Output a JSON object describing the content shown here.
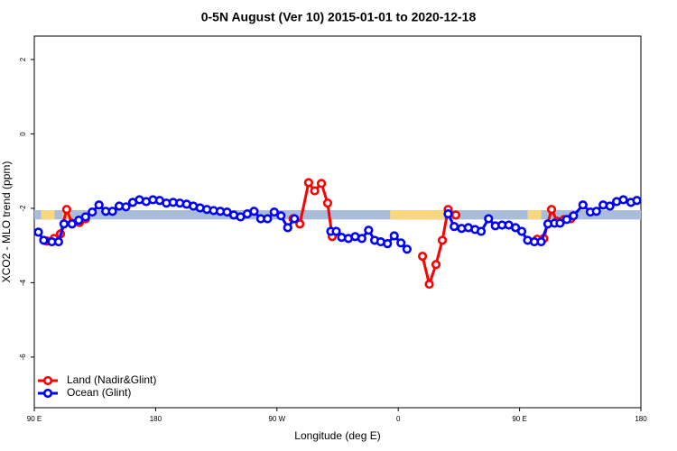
{
  "chart_data": {
    "type": "line",
    "title": "0-5N August (Ver 10)   2015-01-01 to 2020-12-18",
    "xlabel": "Longitude (deg E)",
    "ylabel": "XCO2 - MLO trend (ppm)",
    "xlim": [
      90,
      540
    ],
    "ylim": [
      -7.36,
      2.63
    ],
    "xticks": [
      {
        "value": 90,
        "label": "90 E"
      },
      {
        "value": 180,
        "label": "180"
      },
      {
        "value": 270,
        "label": "90 W"
      },
      {
        "value": 360,
        "label": "0"
      },
      {
        "value": 450,
        "label": "90 E"
      },
      {
        "value": 540,
        "label": "180"
      }
    ],
    "yticks": [
      2,
      0,
      -2,
      -4,
      -6
    ],
    "legend": "bottom-left",
    "band": {
      "ylim": [
        -2.3,
        -2.05
      ],
      "color": "#a9bcd9",
      "land_color": "#f9d77e",
      "land_segments": [
        [
          95,
          105
        ],
        [
          111,
          117
        ],
        [
          354,
          394
        ],
        [
          456,
          466
        ]
      ]
    },
    "series": [
      {
        "name": "Land (Nadir&Glint)",
        "color": "#ff0000",
        "x": [
          99.4,
          104.7,
          109.4,
          114,
          118,
          123.5,
          128,
          200,
          282,
          287,
          293.5,
          298,
          303,
          307.6,
          311,
          330,
          378,
          383,
          388,
          392.7,
          397,
          402.7,
          430,
          463,
          468,
          473.7,
          478,
          483,
          488
        ],
        "values": [
          -2.88,
          -2.81,
          -2.69,
          -2.03,
          -2.4,
          -2.38,
          -2.28,
          null,
          -2.28,
          -2.42,
          -1.31,
          -1.53,
          -1.33,
          -1.86,
          -2.76,
          null,
          -3.29,
          -4.04,
          -3.51,
          -2.86,
          -2.03,
          -2.18,
          null,
          -2.83,
          -2.81,
          -2.03,
          -2.35,
          -2.3,
          -2.28
        ]
      },
      {
        "name": "Ocean (Glint)",
        "color": "#0000ff",
        "x": [
          93,
          97,
          103,
          108,
          112,
          118,
          123,
          128,
          133,
          138,
          143,
          148,
          153,
          158,
          163,
          168,
          173,
          178,
          183,
          188,
          193,
          198,
          203,
          208,
          213,
          218,
          223,
          228,
          233,
          238,
          243,
          248,
          253,
          258,
          263,
          268,
          273,
          278,
          283,
          300,
          310,
          314,
          318,
          323,
          328,
          333,
          338,
          342.5,
          347,
          352,
          357,
          362,
          366.5,
          380,
          397,
          401.5,
          407,
          412,
          417,
          421.5,
          427,
          432,
          437,
          442,
          447,
          451.6,
          456,
          461,
          466,
          471,
          476,
          480,
          485,
          490,
          497,
          502.5,
          507,
          512,
          517,
          522,
          527,
          532.6,
          537
        ],
        "values": [
          -2.64,
          -2.86,
          -2.9,
          -2.9,
          -2.42,
          -2.42,
          -2.32,
          -2.23,
          -2.1,
          -1.91,
          -2.08,
          -2.08,
          -1.94,
          -1.96,
          -1.84,
          -1.77,
          -1.82,
          -1.77,
          -1.79,
          -1.86,
          -1.84,
          -1.86,
          -1.89,
          -1.94,
          -1.99,
          -2.03,
          -2.06,
          -2.08,
          -2.1,
          -2.18,
          -2.23,
          -2.15,
          -2.08,
          -2.28,
          -2.28,
          -2.1,
          -2.2,
          -2.52,
          -2.28,
          null,
          -2.62,
          -2.62,
          -2.78,
          -2.81,
          -2.76,
          -2.81,
          -2.59,
          -2.86,
          -2.9,
          -2.95,
          -2.74,
          -2.93,
          -3.1,
          null,
          -2.15,
          -2.49,
          -2.54,
          -2.52,
          -2.57,
          -2.62,
          -2.28,
          -2.47,
          -2.45,
          -2.45,
          -2.52,
          -2.62,
          -2.86,
          -2.9,
          -2.9,
          -2.42,
          -2.4,
          -2.4,
          -2.3,
          -2.2,
          -1.91,
          -2.1,
          -2.08,
          -1.91,
          -1.94,
          -1.82,
          -1.77,
          -1.84,
          -1.79
        ]
      }
    ]
  }
}
